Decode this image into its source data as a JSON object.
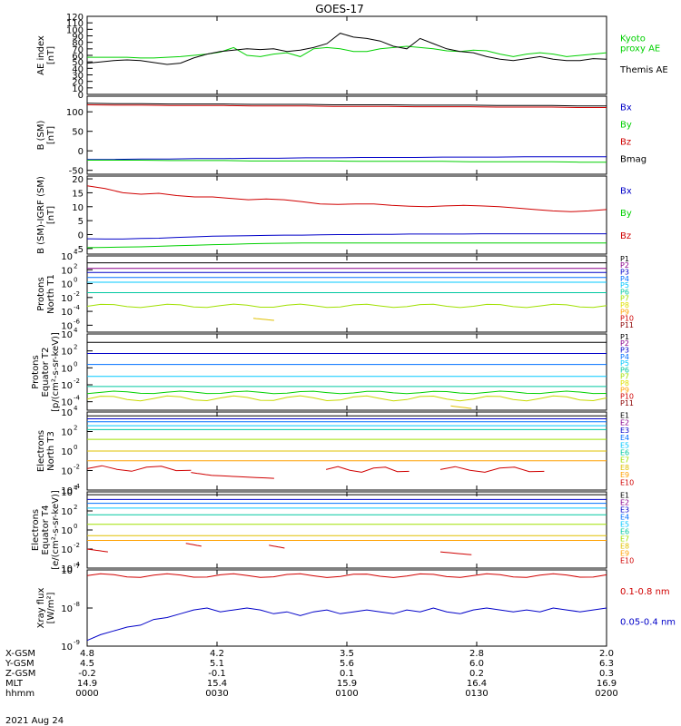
{
  "title": "GOES-17",
  "date_label": "2021 Aug 24",
  "colors": {
    "axis": "#000000",
    "green": "#00d000",
    "red": "#d00000",
    "blue": "#0000c8",
    "darkred": "#8b0000",
    "black": "#000000"
  },
  "chart_data": [
    {
      "id": "ae",
      "type": "line",
      "ylabel": "AE index\n[nT]",
      "ylim": [
        0,
        120
      ],
      "yticks": [
        "0",
        "10",
        "20",
        "30",
        "40",
        "50",
        "60",
        "70",
        "80",
        "90",
        "100",
        "110",
        "120"
      ],
      "legend": [
        {
          "text": "Kyoto\nproxy AE",
          "color": "#00d000"
        },
        {
          "text": "Themis AE",
          "color": "#000000"
        }
      ],
      "series": [
        {
          "color": "#00d000",
          "values": [
            57,
            57,
            57,
            57,
            56,
            56,
            57,
            58,
            60,
            62,
            65,
            72,
            60,
            58,
            62,
            64,
            58,
            70,
            72,
            70,
            66,
            66,
            70,
            72,
            74,
            72,
            70,
            67,
            66,
            68,
            67,
            62,
            58,
            62,
            64,
            62,
            58,
            60,
            62,
            64
          ]
        },
        {
          "color": "#000000",
          "values": [
            48,
            50,
            52,
            53,
            52,
            49,
            46,
            48,
            56,
            62,
            66,
            68,
            70,
            69,
            70,
            66,
            68,
            72,
            78,
            94,
            88,
            86,
            82,
            74,
            70,
            86,
            78,
            70,
            66,
            64,
            58,
            54,
            52,
            55,
            58,
            54,
            52,
            52,
            55,
            54
          ]
        }
      ]
    },
    {
      "id": "bsm",
      "type": "line",
      "ylabel": "B (SM)\n[nT]",
      "ylim": [
        -60,
        140
      ],
      "yticks": [
        "-50",
        "0",
        "50",
        "100"
      ],
      "legend": [
        {
          "text": "Bx",
          "color": "#0000c8"
        },
        {
          "text": "By",
          "color": "#00d000"
        },
        {
          "text": "Bz",
          "color": "#d00000"
        },
        {
          "text": "Bmag",
          "color": "#000000"
        }
      ],
      "series": [
        {
          "color": "#000000",
          "values": [
            122,
            121,
            121,
            120,
            120,
            120,
            119,
            119,
            119,
            118,
            118,
            118,
            117,
            117,
            117,
            116,
            116,
            116,
            115,
            115
          ]
        },
        {
          "color": "#d00000",
          "values": [
            118,
            117,
            117,
            116,
            116,
            116,
            115,
            115,
            115,
            114,
            114,
            114,
            113,
            113,
            113,
            112,
            112,
            112,
            111,
            111
          ]
        },
        {
          "color": "#0000c8",
          "values": [
            -22,
            -22,
            -21,
            -21,
            -20,
            -20,
            -19,
            -19,
            -18,
            -18,
            -17,
            -17,
            -17,
            -16,
            -16,
            -16,
            -15,
            -15,
            -15,
            -15
          ]
        },
        {
          "color": "#00d000",
          "values": [
            -24,
            -24,
            -24,
            -25,
            -25,
            -25,
            -26,
            -26,
            -26,
            -26,
            -27,
            -27,
            -27,
            -27,
            -28,
            -28,
            -28,
            -28,
            -29,
            -29
          ]
        }
      ]
    },
    {
      "id": "bdiff",
      "type": "line",
      "ylabel": "B (SM)-IGRF (SM)\n[nT]",
      "ylim": [
        -7,
        21
      ],
      "yticks": [
        "-5",
        "0",
        "5",
        "10",
        "15",
        "20"
      ],
      "legend": [
        {
          "text": "Bx",
          "color": "#0000c8"
        },
        {
          "text": "By",
          "color": "#00d000"
        },
        {
          "text": "Bz",
          "color": "#d00000"
        }
      ],
      "series": [
        {
          "color": "#d00000",
          "values": [
            17.5,
            16.5,
            15,
            14.5,
            14.8,
            14,
            13.5,
            13.5,
            13,
            12.5,
            12.8,
            12.5,
            11.8,
            11,
            10.8,
            11,
            11,
            10.5,
            10.2,
            10,
            10.3,
            10.5,
            10.3,
            10,
            9.5,
            9,
            8.5,
            8.2,
            8.5,
            9
          ]
        },
        {
          "color": "#0000c8",
          "values": [
            -1.5,
            -1.6,
            -1.6,
            -1.4,
            -1.3,
            -1,
            -0.8,
            -0.6,
            -0.5,
            -0.4,
            -0.3,
            -0.2,
            -0.2,
            -0.1,
            0,
            0,
            0.1,
            0.1,
            0.2,
            0.2,
            0.2,
            0.2,
            0.3,
            0.3,
            0.3,
            0.3,
            0.3,
            0.3,
            0.3,
            0.3
          ]
        },
        {
          "color": "#00d000",
          "values": [
            -4.7,
            -4.6,
            -4.5,
            -4.4,
            -4.2,
            -4,
            -3.8,
            -3.6,
            -3.5,
            -3.3,
            -3.2,
            -3.1,
            -3,
            -3,
            -3,
            -3,
            -3,
            -3,
            -3,
            -3,
            -3,
            -3,
            -3,
            -3,
            -3,
            -3,
            -3,
            -3,
            -3,
            -3
          ]
        }
      ]
    },
    {
      "id": "p_north",
      "type": "line",
      "log": true,
      "ylabel": "Protons\nNorth T1",
      "ylim": [
        -7,
        4
      ],
      "yticks": [
        {
          "exp": 4,
          "text": "10"
        },
        {
          "exp": 2,
          "text": "10"
        },
        {
          "exp": 0,
          "text": "10"
        },
        {
          "exp": -2,
          "text": "10"
        },
        {
          "exp": -4,
          "text": "10"
        },
        {
          "exp": -6,
          "text": "10"
        }
      ],
      "ytick_exps": [
        "4",
        "2",
        "0",
        "-2",
        "-4",
        "-6"
      ],
      "legend": [
        {
          "text": "P1",
          "color": "#000000"
        },
        {
          "text": "P2",
          "color": "#8b008b"
        },
        {
          "text": "P3",
          "color": "#0000c8"
        },
        {
          "text": "P4",
          "color": "#0070ff"
        },
        {
          "text": "P5",
          "color": "#00c8ff"
        },
        {
          "text": "P6",
          "color": "#00c8a0"
        },
        {
          "text": "P7",
          "color": "#a0e000"
        },
        {
          "text": "P8",
          "color": "#e0e000"
        },
        {
          "text": "P9",
          "color": "#ffa000"
        },
        {
          "text": "P10",
          "color": "#d00000"
        },
        {
          "text": "P11",
          "color": "#8b0000"
        }
      ],
      "series": [
        {
          "color": "#000000",
          "level": 3.0
        },
        {
          "color": "#8b008b",
          "level": 2.2
        },
        {
          "color": "#0000c8",
          "level": 1.6
        },
        {
          "color": "#0070ff",
          "level": 0.9
        },
        {
          "color": "#00c8ff",
          "level": 0.2
        },
        {
          "color": "#00c8a0",
          "level": -1.3
        },
        {
          "color": "#a0e000",
          "level": -3.2,
          "wobble": 0.25
        }
      ],
      "fragments": [
        {
          "color": "#e0c000",
          "x0": 0.32,
          "x1": 0.36,
          "level": -5.0
        }
      ]
    },
    {
      "id": "p_equator",
      "type": "line",
      "log": true,
      "ylabel": "Protons\nEquator T2\n[p/(cm²-s-sr-keV)]",
      "ylim": [
        -5,
        4
      ],
      "yticks": [
        {
          "exp": 4,
          "text": "10"
        },
        {
          "exp": 2,
          "text": "10"
        },
        {
          "exp": 0,
          "text": "10"
        },
        {
          "exp": -2,
          "text": "10"
        },
        {
          "exp": -4,
          "text": "10"
        }
      ],
      "ytick_exps": [
        "4",
        "2",
        "0",
        "-2",
        "-4"
      ],
      "legend": [
        {
          "text": "P1",
          "color": "#000000"
        },
        {
          "text": "P2",
          "color": "#8b008b"
        },
        {
          "text": "P3",
          "color": "#0000c8"
        },
        {
          "text": "P4",
          "color": "#0070ff"
        },
        {
          "text": "P5",
          "color": "#00c8ff"
        },
        {
          "text": "P6",
          "color": "#00c8a0"
        },
        {
          "text": "P7",
          "color": "#a0e000"
        },
        {
          "text": "P8",
          "color": "#e0e000"
        },
        {
          "text": "P9",
          "color": "#ffa000"
        },
        {
          "text": "P10",
          "color": "#d00000"
        },
        {
          "text": "P11",
          "color": "#8b0000"
        }
      ],
      "series": [
        {
          "color": "#000000",
          "level": 3.0
        },
        {
          "color": "#0000c8",
          "level": 1.7
        },
        {
          "color": "#0070ff",
          "level": 0.4
        },
        {
          "color": "#00c8ff",
          "level": -1.0
        },
        {
          "color": "#00c8a0",
          "level": -2.2
        },
        {
          "color": "#00d000",
          "level": -2.9,
          "wobble": 0.15
        },
        {
          "color": "#c8d800",
          "level": -3.6,
          "wobble": 0.3
        }
      ],
      "fragments": [
        {
          "color": "#e0c000",
          "x0": 0.7,
          "x1": 0.74,
          "level": -4.5
        }
      ]
    },
    {
      "id": "e_north",
      "type": "line",
      "log": true,
      "ylabel": "Electrons\nNorth T3",
      "ylim": [
        -4,
        4
      ],
      "yticks": [
        {
          "exp": 4,
          "text": "10"
        },
        {
          "exp": 2,
          "text": "10"
        },
        {
          "exp": 0,
          "text": "10"
        },
        {
          "exp": -2,
          "text": "10"
        },
        {
          "exp": -4,
          "text": "10"
        }
      ],
      "ytick_exps": [
        "4",
        "2",
        "0",
        "-2",
        "-4"
      ],
      "legend": [
        {
          "text": "E1",
          "color": "#000000"
        },
        {
          "text": "E2",
          "color": "#8b008b"
        },
        {
          "text": "E3",
          "color": "#0000c8"
        },
        {
          "text": "E4",
          "color": "#0070ff"
        },
        {
          "text": "E5",
          "color": "#00c8ff"
        },
        {
          "text": "E6",
          "color": "#00c8a0"
        },
        {
          "text": "E7",
          "color": "#a0e000"
        },
        {
          "text": "E8",
          "color": "#e0c000"
        },
        {
          "text": "E9",
          "color": "#ffa000"
        },
        {
          "text": "E10",
          "color": "#d00000"
        }
      ],
      "series": [
        {
          "color": "#000000",
          "level": 3.6
        },
        {
          "color": "#0000c8",
          "level": 3.3
        },
        {
          "color": "#0070ff",
          "level": 3.0
        },
        {
          "color": "#00c8ff",
          "level": 2.6
        },
        {
          "color": "#00c8a0",
          "level": 2.2
        },
        {
          "color": "#a0e000",
          "level": 1.2
        },
        {
          "color": "#e0c000",
          "level": 0.0
        },
        {
          "color": "#ffa000",
          "level": -1.0
        }
      ],
      "fragments": [
        {
          "color": "#d00000",
          "x0": 0.0,
          "x1": 0.2,
          "level": -1.8,
          "wobble": 0.3
        },
        {
          "color": "#d00000",
          "x0": 0.2,
          "x1": 0.24,
          "level": -2.2
        },
        {
          "color": "#d00000",
          "x0": 0.24,
          "x1": 0.36,
          "level": -2.5
        },
        {
          "color": "#d00000",
          "x0": 0.46,
          "x1": 0.62,
          "level": -1.9,
          "wobble": 0.3
        },
        {
          "color": "#d00000",
          "x0": 0.68,
          "x1": 0.88,
          "level": -1.9,
          "wobble": 0.3
        }
      ]
    },
    {
      "id": "e_equator",
      "type": "line",
      "log": true,
      "ylabel": "Electrons\nEquator T4\n[e/(cm²-s-sr-keV)]",
      "ylim": [
        -4,
        4
      ],
      "yticks": [
        {
          "exp": 4,
          "text": "10"
        },
        {
          "exp": 2,
          "text": "10"
        },
        {
          "exp": 0,
          "text": "10"
        },
        {
          "exp": -2,
          "text": "10"
        },
        {
          "exp": -4,
          "text": "10"
        }
      ],
      "ytick_exps": [
        "4",
        "2",
        "0",
        "-2",
        "-4"
      ],
      "legend": [
        {
          "text": "E1",
          "color": "#000000"
        },
        {
          "text": "E2",
          "color": "#8b008b"
        },
        {
          "text": "E3",
          "color": "#0000c8"
        },
        {
          "text": "E4",
          "color": "#0070ff"
        },
        {
          "text": "E5",
          "color": "#00c8ff"
        },
        {
          "text": "E6",
          "color": "#00c8a0"
        },
        {
          "text": "E7",
          "color": "#a0e000"
        },
        {
          "text": "E8",
          "color": "#e0c000"
        },
        {
          "text": "E9",
          "color": "#ffa000"
        },
        {
          "text": "E10",
          "color": "#d00000"
        }
      ],
      "series": [
        {
          "color": "#000000",
          "level": 3.7
        },
        {
          "color": "#0000c8",
          "level": 3.2
        },
        {
          "color": "#0070ff",
          "level": 2.8
        },
        {
          "color": "#00c8ff",
          "level": 2.3
        },
        {
          "color": "#00c8a0",
          "level": 1.6
        },
        {
          "color": "#a0e000",
          "level": 0.6
        },
        {
          "color": "#e0c000",
          "level": -0.6
        },
        {
          "color": "#ffa000",
          "level": -1.1
        }
      ],
      "fragments": [
        {
          "color": "#d00000",
          "x0": 0.0,
          "x1": 0.04,
          "level": -2.0
        },
        {
          "color": "#d00000",
          "x0": 0.19,
          "x1": 0.22,
          "level": -1.4
        },
        {
          "color": "#d00000",
          "x0": 0.35,
          "x1": 0.38,
          "level": -1.6
        },
        {
          "color": "#d00000",
          "x0": 0.68,
          "x1": 0.74,
          "level": -2.3
        }
      ]
    },
    {
      "id": "xray",
      "type": "line",
      "log": true,
      "ylabel": "Xray flux\n[W/m²]",
      "ylim": [
        -9,
        -7
      ],
      "yticks": [
        {
          "exp": -7,
          "text": "10"
        },
        {
          "exp": -8,
          "text": "10"
        },
        {
          "exp": -9,
          "text": "10"
        }
      ],
      "ytick_exps": [
        "-7",
        "-8",
        "-9"
      ],
      "legend": [
        {
          "text": "0.1-0.8 nm",
          "color": "#d00000"
        },
        {
          "text": "0.05-0.4 nm",
          "color": "#0000c8"
        }
      ],
      "series": [
        {
          "color": "#d00000",
          "level": -7.15,
          "wobble": 0.05
        },
        {
          "color": "#0000c8",
          "values": [
            -8.85,
            -8.7,
            -8.6,
            -8.5,
            -8.45,
            -8.3,
            -8.25,
            -8.15,
            -8.05,
            -8.0,
            -8.1,
            -8.05,
            -8.0,
            -8.05,
            -8.15,
            -8.1,
            -8.2,
            -8.1,
            -8.05,
            -8.15,
            -8.1,
            -8.05,
            -8.1,
            -8.15,
            -8.05,
            -8.1,
            -8.0,
            -8.1,
            -8.15,
            -8.05,
            -8.0,
            -8.05,
            -8.1,
            -8.05,
            -8.1,
            -8.0,
            -8.05,
            -8.1,
            -8.05,
            -8.0
          ]
        }
      ]
    }
  ],
  "x_axis": {
    "row_labels": [
      "X-GSM",
      "Y-GSM",
      "Z-GSM",
      "MLT",
      "hhmm"
    ],
    "columns": [
      {
        "values": [
          "4.8",
          "4.5",
          "-0.2",
          "14.9",
          "0000"
        ]
      },
      {
        "values": [
          "4.2",
          "5.1",
          "-0.1",
          "15.4",
          "0030"
        ]
      },
      {
        "values": [
          "3.5",
          "5.6",
          "0.1",
          "15.9",
          "0100"
        ]
      },
      {
        "values": [
          "2.8",
          "6.0",
          "0.2",
          "16.4",
          "0130"
        ]
      },
      {
        "values": [
          "2.0",
          "6.3",
          "0.3",
          "16.9",
          "0200"
        ]
      }
    ]
  }
}
